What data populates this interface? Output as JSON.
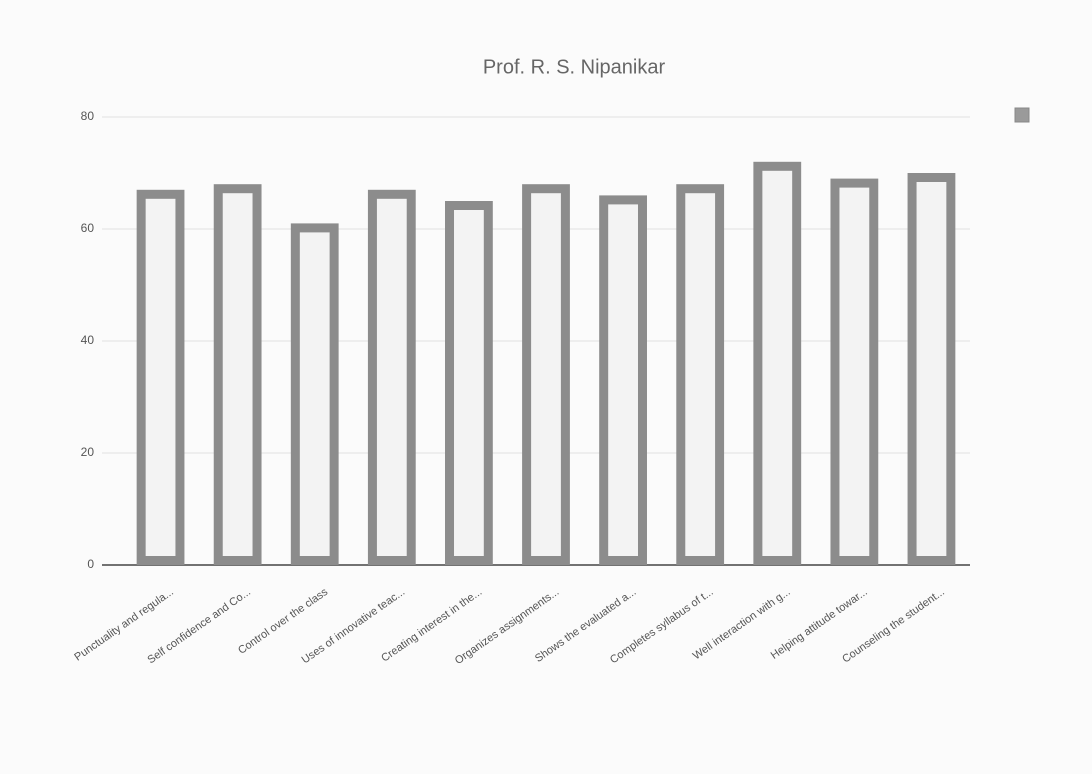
{
  "chart_data": {
    "type": "bar",
    "title": "Prof. R. S. Nipanikar",
    "categories": [
      "Punctuality and regula...",
      "Self confidence and Co...",
      "Control over the class",
      "Uses of innovative teac...",
      "Creating interest in the...",
      "Organizes assignments...",
      "Shows the evaluated a...",
      "Completes syllabus of t...",
      "Well interaction with g...",
      "Helping attitude towar...",
      "Counseling the student..."
    ],
    "values": [
      67,
      68,
      61,
      67,
      65,
      68,
      66,
      68,
      72,
      69,
      70
    ],
    "color": "#8c8c8c",
    "ylim": [
      0,
      80
    ],
    "yticks": [
      0,
      20,
      40,
      60,
      80
    ],
    "grid": true
  }
}
